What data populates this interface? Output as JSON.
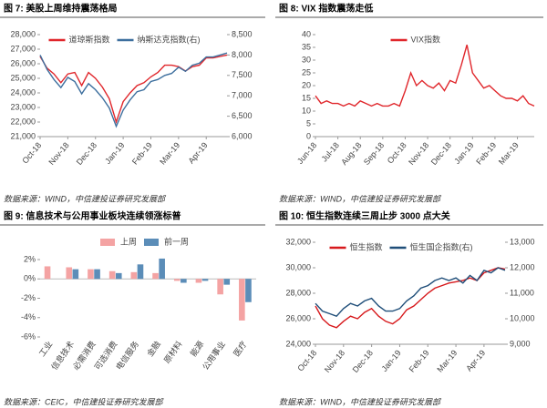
{
  "chart_data": [
    {
      "type": "line",
      "title": "图 7:  美股上周维持震荡格局",
      "note": "数据来源：WIND，中信建投证券研究发展部",
      "categories": [
        "Oct-18",
        null,
        null,
        null,
        "Nov-18",
        null,
        null,
        null,
        "Dec-18",
        null,
        null,
        null,
        "Jan-19",
        null,
        null,
        null,
        "Feb-19",
        null,
        null,
        null,
        "Mar-19",
        null,
        null,
        null,
        "Apr-19",
        null,
        null,
        null
      ],
      "series": [
        {
          "name": "道琼斯指数",
          "color": "#e0262b",
          "values": [
            26500,
            25700,
            25300,
            24700,
            25300,
            25400,
            24500,
            25400,
            25000,
            24400,
            23600,
            22000,
            23400,
            24000,
            24500,
            24700,
            25100,
            25400,
            25900,
            25900,
            25800,
            25500,
            25800,
            25900,
            26400,
            26400,
            26500,
            26600
          ]
        },
        {
          "name": "纳斯达克指数(右)",
          "color": "#3d6f9e",
          "axis": "y2",
          "values": [
            8000,
            7650,
            7400,
            7200,
            7450,
            7350,
            7050,
            7300,
            7150,
            6950,
            6700,
            6250,
            6650,
            6900,
            7100,
            7150,
            7350,
            7400,
            7500,
            7550,
            7700,
            7600,
            7750,
            7800,
            7950,
            7950,
            8000,
            8050
          ]
        }
      ],
      "ylim": [
        21000,
        28000
      ],
      "yticks": [
        {
          "value": 21000,
          "label": "21,000"
        },
        {
          "value": 22000,
          "label": "22,000"
        },
        {
          "value": 23000,
          "label": "23,000"
        },
        {
          "value": 24000,
          "label": "24,000"
        },
        {
          "value": 25000,
          "label": "25,000"
        },
        {
          "value": 26000,
          "label": "26,000"
        },
        {
          "value": 27000,
          "label": "27,000"
        },
        {
          "value": 28000,
          "label": "28,000"
        }
      ],
      "y2lim": [
        6000,
        8500
      ],
      "y2ticks": [
        {
          "value": 6000,
          "label": "6,000"
        },
        {
          "value": 6500,
          "label": "6,500"
        },
        {
          "value": 7000,
          "label": "7,000"
        },
        {
          "value": 7500,
          "label": "7,500"
        },
        {
          "value": 8000,
          "label": "8,000"
        },
        {
          "value": 8500,
          "label": "8,500"
        }
      ],
      "legend": "top"
    },
    {
      "type": "line",
      "title": "图 8:  VIX 指数震荡走低",
      "note": "数据来源：WIND，中信建投证券研究发展部",
      "categories": [
        "Jun-18",
        null,
        null,
        null,
        "Jul-18",
        null,
        null,
        null,
        "Aug-18",
        null,
        null,
        null,
        "Sep-18",
        null,
        null,
        null,
        "Oct-18",
        null,
        null,
        null,
        "Nov-18",
        null,
        null,
        null,
        "Dec-18",
        null,
        null,
        null,
        "Jan-19",
        null,
        null,
        null,
        "Feb-19",
        null,
        null,
        null,
        "Mar-19",
        null,
        null,
        null
      ],
      "series": [
        {
          "name": "VIX指数",
          "color": "#e0262b",
          "values": [
            16,
            13,
            14,
            13,
            13,
            12,
            13,
            12,
            14,
            13,
            12,
            13,
            12,
            12,
            13,
            12,
            18,
            25,
            20,
            22,
            20,
            19,
            21,
            18,
            22,
            21,
            28,
            36,
            25,
            22,
            19,
            20,
            18,
            16,
            15,
            15,
            14,
            16,
            13,
            12
          ]
        }
      ],
      "ylim": [
        0,
        40
      ],
      "yticks": [
        0,
        5,
        10,
        15,
        20,
        25,
        30,
        35,
        40
      ],
      "legend": "top"
    },
    {
      "type": "bar",
      "title": "图 9:  信息技术与公用事业板块连续领涨标普",
      "note": "数据来源：CEIC，中信建投证券研究发展部",
      "categories": [
        "工业",
        "信息技术",
        "必需消费",
        "可选消费",
        "电信服务",
        "金融",
        "原材料",
        "能源",
        "公用事业",
        "医疗"
      ],
      "series": [
        {
          "name": "上周",
          "color": "#f4a3a3",
          "values": [
            1.3,
            1.2,
            1.0,
            0.8,
            0.7,
            0.6,
            -0.2,
            -0.4,
            -1.6,
            -4.3
          ]
        },
        {
          "name": "前一周",
          "color": "#5b8db8",
          "values": [
            0,
            1.0,
            1.0,
            0.6,
            1.5,
            2.1,
            -0.4,
            -0.2,
            -0.6,
            -2.4
          ]
        }
      ],
      "ylim": [
        -6,
        2
      ],
      "yticks": [
        {
          "value": -6,
          "label": "-6%"
        },
        {
          "value": -4,
          "label": "-4%"
        },
        {
          "value": -2,
          "label": "-2%"
        },
        {
          "value": 0,
          "label": "0%"
        },
        {
          "value": 2,
          "label": "2%"
        }
      ],
      "legend": "top"
    },
    {
      "type": "line",
      "title": "图 10:  恒生指数连续三周止步 3000 点大关",
      "note": "数据来源：WIND，中信建投证券研究发展部",
      "categories": [
        "Oct-18",
        null,
        null,
        null,
        "Nov-18",
        null,
        null,
        null,
        "Dec-18",
        null,
        null,
        null,
        "Jan-19",
        null,
        null,
        null,
        "Feb-19",
        null,
        null,
        null,
        "Mar-19",
        null,
        null,
        null,
        "Apr-19",
        null,
        null,
        null
      ],
      "series": [
        {
          "name": "恒生指数",
          "color": "#d7191c",
          "values": [
            27000,
            26000,
            25500,
            25300,
            25800,
            26200,
            26000,
            26500,
            26800,
            26200,
            25800,
            25600,
            26000,
            26700,
            27000,
            27500,
            28000,
            28400,
            28600,
            28800,
            28900,
            29000,
            29200,
            29000,
            29600,
            29800,
            30000,
            29900
          ]
        },
        {
          "name": "恒生国企指数(右)",
          "color": "#1f4e79",
          "axis": "y2",
          "values": [
            10600,
            10300,
            10200,
            10100,
            10400,
            10600,
            10500,
            10700,
            10800,
            10500,
            10300,
            10300,
            10400,
            10700,
            10900,
            11200,
            11300,
            11500,
            11600,
            11500,
            11600,
            11400,
            11700,
            11500,
            11900,
            11800,
            12000,
            11900
          ]
        }
      ],
      "ylim": [
        24000,
        32000
      ],
      "yticks": [
        {
          "value": 24000,
          "label": "24,000"
        },
        {
          "value": 26000,
          "label": "26,000"
        },
        {
          "value": 28000,
          "label": "28,000"
        },
        {
          "value": 30000,
          "label": "30,000"
        },
        {
          "value": 32000,
          "label": "32,000"
        }
      ],
      "y2lim": [
        9000,
        13000
      ],
      "y2ticks": [
        {
          "value": 9000,
          "label": "9,000"
        },
        {
          "value": 10000,
          "label": "10,000"
        },
        {
          "value": 11000,
          "label": "11,000"
        },
        {
          "value": 12000,
          "label": "12,000"
        },
        {
          "value": 13000,
          "label": "13,000"
        }
      ],
      "legend": "top"
    }
  ]
}
